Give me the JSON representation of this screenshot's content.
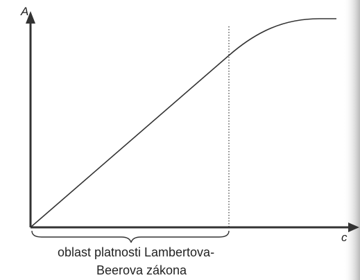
{
  "axes": {
    "y_label": "A",
    "x_label": "c"
  },
  "annotation": {
    "lines": [
      "oblast platnosti Lambertova-",
      "Beerova zákona"
    ]
  }
}
